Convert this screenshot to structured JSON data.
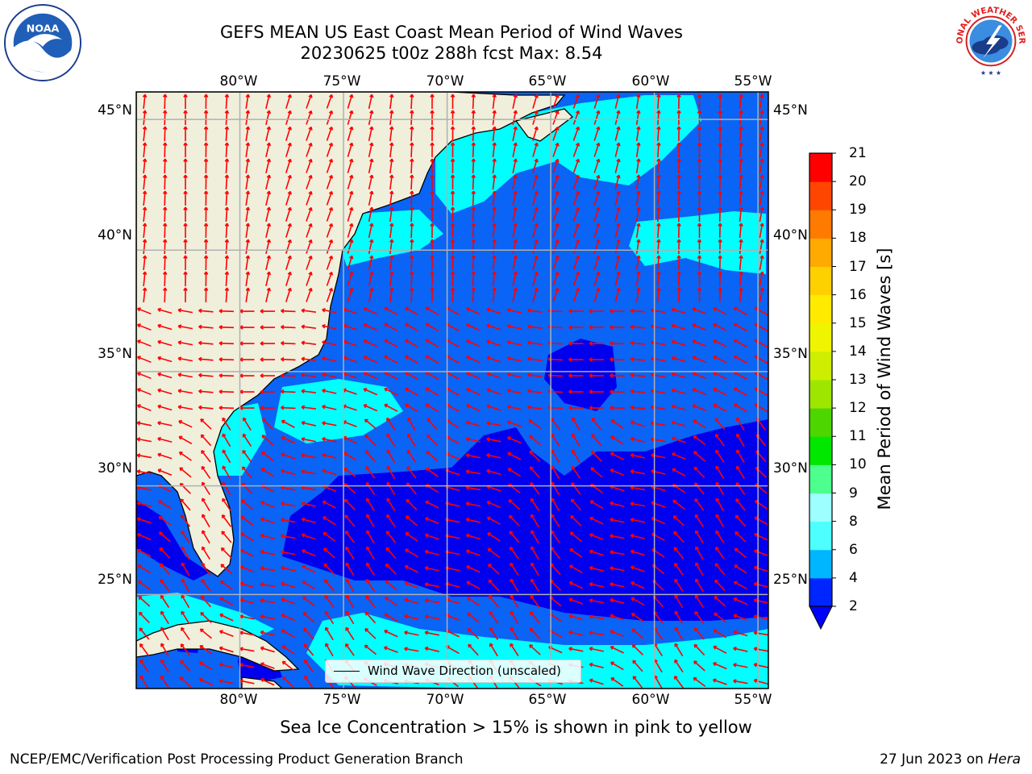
{
  "title": {
    "line1": "GEFS MEAN US East Coast Mean Period of Wind Waves",
    "line2": "20230625 t00z 288h fcst   Max: 8.54"
  },
  "logos": {
    "left": {
      "icon": "noaa-logo",
      "text": "NOAA"
    },
    "right": {
      "icon": "nws-logo",
      "text": "NATIONAL WEATHER SERVICE"
    }
  },
  "map": {
    "lon_range": [
      -85,
      -54.5
    ],
    "lat_range": [
      20.5,
      46
    ],
    "lon_labels": [
      "80°W",
      "75°W",
      "70°W",
      "65°W",
      "60°W",
      "55°W"
    ],
    "lat_labels": [
      "45°N",
      "40°N",
      "35°N",
      "30°N",
      "25°N"
    ],
    "land_color": "#efefdc",
    "vector_color": "#ff0000",
    "gridlines": true
  },
  "legend": {
    "label": "Wind Wave Direction (unscaled)"
  },
  "colorbar": {
    "title": "Mean Period of Wind Waves [s]",
    "ticks": [
      "2",
      "4",
      "6",
      "8",
      "9",
      "10",
      "11",
      "12",
      "13",
      "14",
      "15",
      "16",
      "17",
      "18",
      "19",
      "20",
      "21"
    ],
    "colors": [
      "#0025ff",
      "#00b6ff",
      "#4dffff",
      "#9dffff",
      "#4dff8c",
      "#00e800",
      "#4ed600",
      "#9ee600",
      "#cdee00",
      "#eff400",
      "#ffea00",
      "#ffd000",
      "#ffaa00",
      "#ff7a00",
      "#ff4600",
      "#ff0000"
    ],
    "extend_color": "#0000ff"
  },
  "notes": {
    "sea_ice": "Sea Ice Concentration > 15% is shown in pink to yellow",
    "footer_left": "NCEP/EMC/Verification Post Processing Product Generation Branch",
    "footer_right_prefix": "27 Jun 2023 on ",
    "footer_right_host": "Hera"
  }
}
